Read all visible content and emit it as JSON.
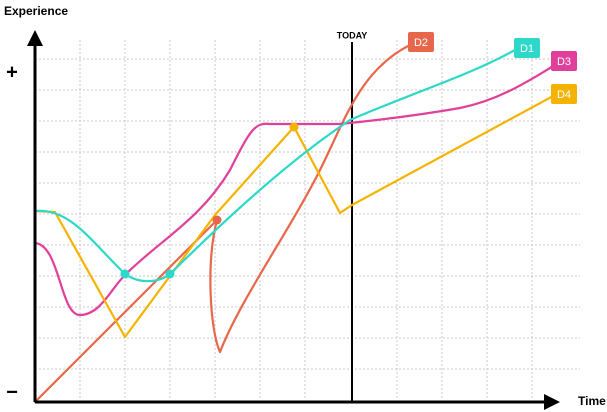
{
  "axes": {
    "y_label": "Experience",
    "x_label": "Time",
    "y_plus": "+",
    "y_minus": "−",
    "today": "TODAY"
  },
  "curves": [
    {
      "label": "D1"
    },
    {
      "label": "D2"
    },
    {
      "label": "D3"
    },
    {
      "label": "D4"
    }
  ]
}
